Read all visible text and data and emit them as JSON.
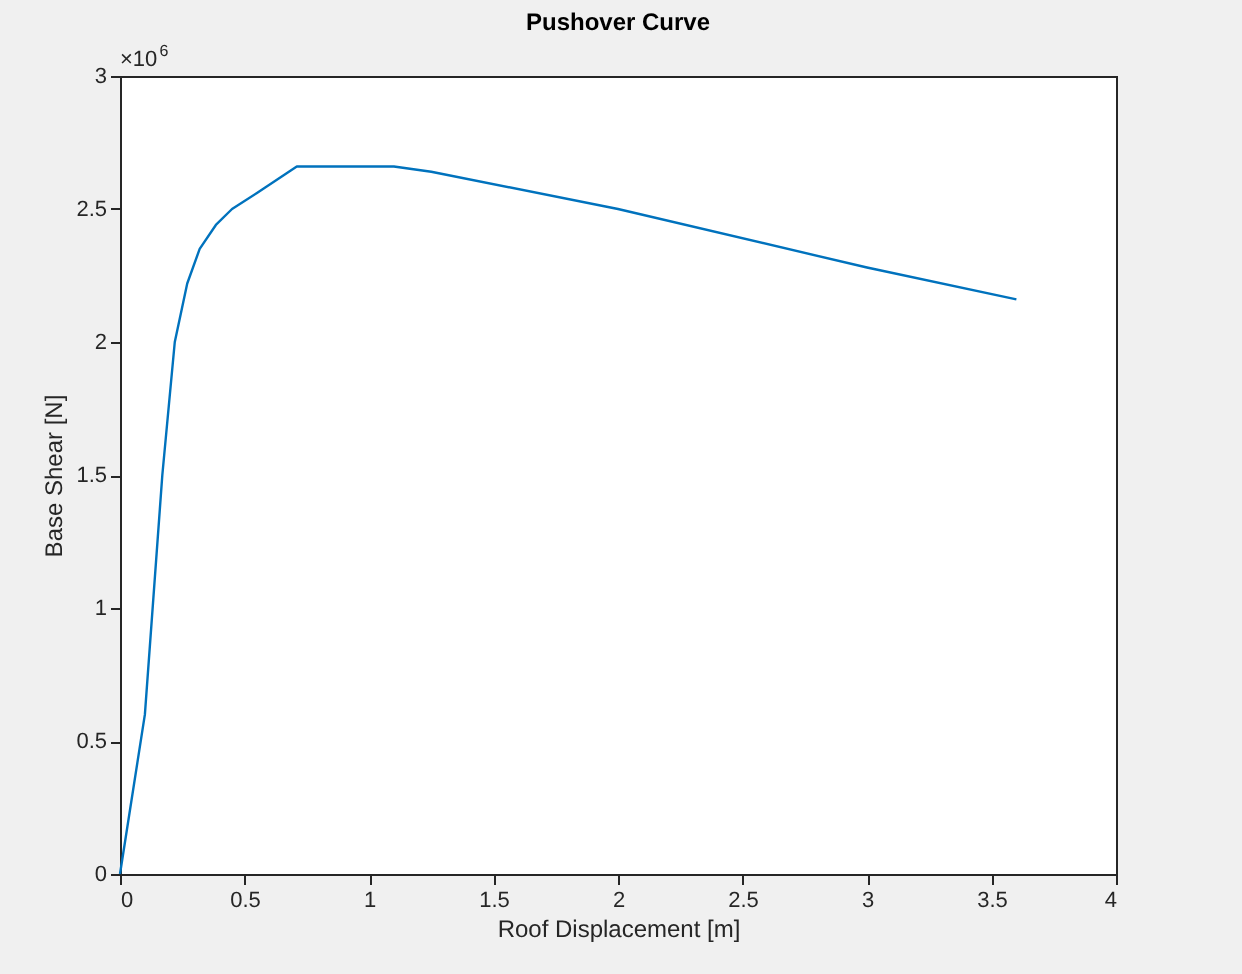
{
  "chart_data": {
    "type": "line",
    "title": "Pushover Curve",
    "xlabel": "Roof Displacement [m]",
    "ylabel": "Base Shear [N]",
    "annotations": [
      "×10$^{6}$"
    ],
    "series": [
      {
        "color": "#0072bd",
        "x": [
          0,
          0.1,
          0.17,
          0.22,
          0.27,
          0.32,
          0.385,
          0.45,
          0.55,
          0.71,
          1.0,
          1.1,
          1.25,
          2.0,
          3.0,
          3.6
        ],
        "values": [
          0,
          0.6,
          1.5,
          2.0,
          2.22,
          2.35,
          2.44,
          2.5,
          2.56,
          2.66,
          2.66,
          2.66,
          2.64,
          2.5,
          2.28,
          2.16
        ]
      }
    ],
    "xlim": [
      0,
      4
    ],
    "xticks": [
      0,
      0.5,
      1,
      1.5,
      2,
      2.5,
      3,
      3.5,
      4
    ],
    "ylim": [
      0,
      3
    ],
    "yticks": [
      0,
      0.5,
      1,
      1.5,
      2,
      2.5,
      3
    ],
    "grid": false,
    "marker": "none",
    "line_style": "solid"
  }
}
